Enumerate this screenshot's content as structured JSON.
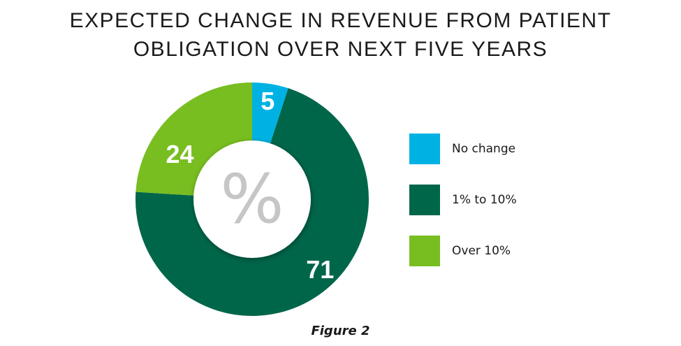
{
  "chart_data": {
    "type": "pie",
    "title": "EXPECTED CHANGE IN REVENUE FROM PATIENT OBLIGATION OVER NEXT FIVE YEARS",
    "title_lines": [
      "EXPECTED CHANGE IN REVENUE FROM PATIENT",
      "OBLIGATION OVER NEXT FIVE YEARS"
    ],
    "center_label": "%",
    "categories": [
      "No change",
      "1% to 10%",
      "Over 10%"
    ],
    "values": [
      5,
      71,
      24
    ],
    "data_labels": [
      "5",
      "71",
      "24"
    ],
    "colors": [
      "#00b2e3",
      "#00664a",
      "#78be20"
    ],
    "legend_position": "right"
  },
  "caption": "Figure 2"
}
